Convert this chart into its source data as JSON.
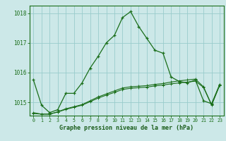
{
  "hours": [
    0,
    1,
    2,
    3,
    4,
    5,
    6,
    7,
    8,
    9,
    10,
    11,
    12,
    13,
    14,
    15,
    16,
    17,
    18,
    19,
    20,
    21,
    22,
    23
  ],
  "line1": [
    1015.75,
    1014.9,
    1014.65,
    1014.75,
    1015.3,
    1015.3,
    1015.65,
    1016.15,
    1016.55,
    1017.0,
    1017.25,
    1017.85,
    1018.05,
    1017.55,
    1017.15,
    1016.75,
    1016.65,
    1015.85,
    1015.7,
    1015.65,
    1015.75,
    1015.05,
    1014.95,
    1015.6
  ],
  "line2": [
    1014.65,
    1014.6,
    1014.6,
    1014.68,
    1014.78,
    1014.85,
    1014.92,
    1015.05,
    1015.18,
    1015.28,
    1015.38,
    1015.48,
    1015.52,
    1015.54,
    1015.56,
    1015.6,
    1015.63,
    1015.68,
    1015.72,
    1015.75,
    1015.78,
    1015.52,
    1014.92,
    1015.58
  ],
  "line3": [
    1014.62,
    1014.6,
    1014.6,
    1014.67,
    1014.76,
    1014.83,
    1014.9,
    1015.02,
    1015.14,
    1015.24,
    1015.33,
    1015.43,
    1015.47,
    1015.49,
    1015.51,
    1015.55,
    1015.58,
    1015.62,
    1015.65,
    1015.68,
    1015.71,
    1015.5,
    1014.9,
    1015.57
  ],
  "line_color": "#1a6e1a",
  "bg_color": "#cce8e8",
  "grid_color": "#99cccc",
  "ylim": [
    1014.55,
    1018.25
  ],
  "yticks": [
    1015,
    1016,
    1017,
    1018
  ],
  "xlabel": "Graphe pression niveau de la mer (hPa)",
  "xlabel_color": "#1a5c1a",
  "axis_color": "#1a6e1a"
}
